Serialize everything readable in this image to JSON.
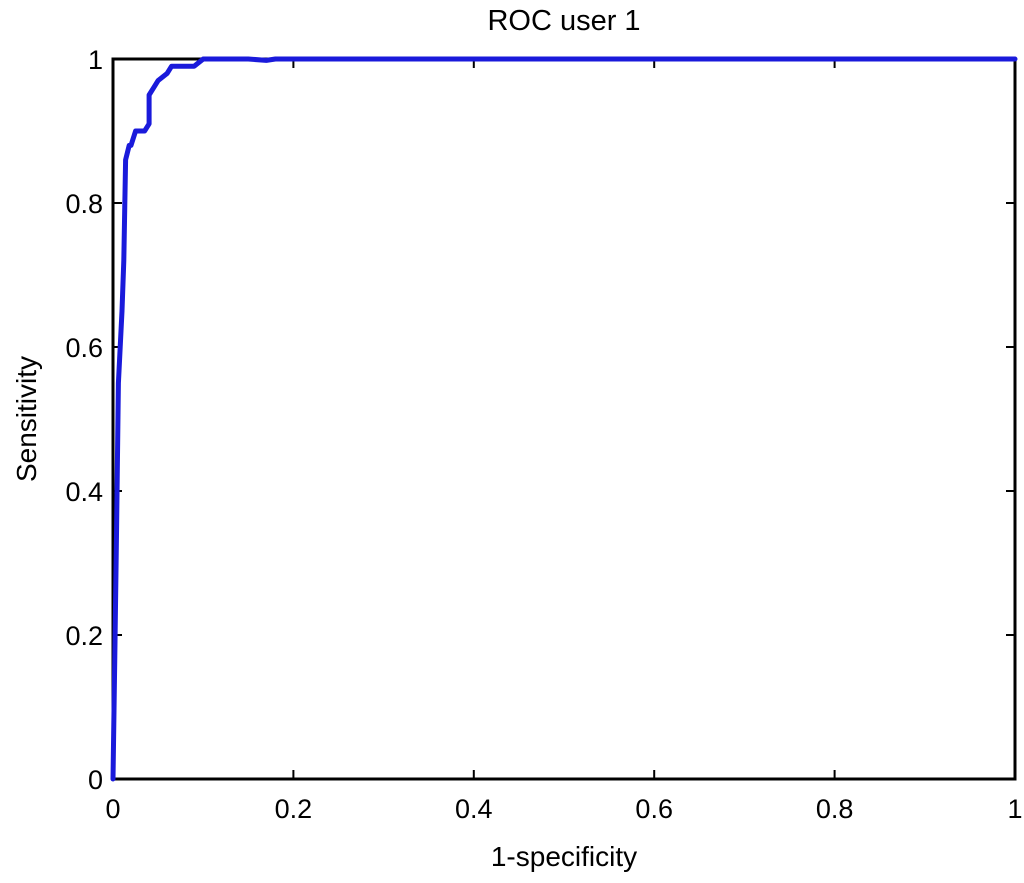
{
  "chart_data": {
    "type": "line",
    "title": "ROC user 1",
    "xlabel": "1-specificity",
    "ylabel": "Sensitivity",
    "xlim": [
      0,
      1
    ],
    "ylim": [
      0,
      1
    ],
    "xticks": [
      0,
      0.2,
      0.4,
      0.6,
      0.8,
      1
    ],
    "yticks": [
      0,
      0.2,
      0.4,
      0.6,
      0.8,
      1
    ],
    "xtick_labels": [
      "0",
      "0.2",
      "0.4",
      "0.6",
      "0.8",
      "1"
    ],
    "ytick_labels": [
      "0",
      "0.2",
      "0.4",
      "0.6",
      "0.8",
      "1"
    ],
    "grid": false,
    "legend": "none",
    "series": [
      {
        "color": "#1a1adb",
        "x": [
          0,
          0.002,
          0.004,
          0.006,
          0.008,
          0.01,
          0.012,
          0.014,
          0.016,
          0.018,
          0.02,
          0.025,
          0.03,
          0.035,
          0.04,
          0.04,
          0.045,
          0.05,
          0.06,
          0.065,
          0.07,
          0.08,
          0.09,
          0.1,
          0.11,
          0.13,
          0.15,
          0.17,
          0.18,
          0.2,
          0.3,
          0.5,
          0.7,
          0.9,
          1.0
        ],
        "y": [
          0,
          0.17,
          0.35,
          0.55,
          0.6,
          0.65,
          0.72,
          0.86,
          0.87,
          0.88,
          0.88,
          0.9,
          0.9,
          0.9,
          0.91,
          0.95,
          0.96,
          0.97,
          0.98,
          0.99,
          0.99,
          0.99,
          0.99,
          1.0,
          1.0,
          1.0,
          1.0,
          0.998,
          1.0,
          1.0,
          1.0,
          1.0,
          1.0,
          1.0,
          1.0
        ]
      }
    ]
  }
}
